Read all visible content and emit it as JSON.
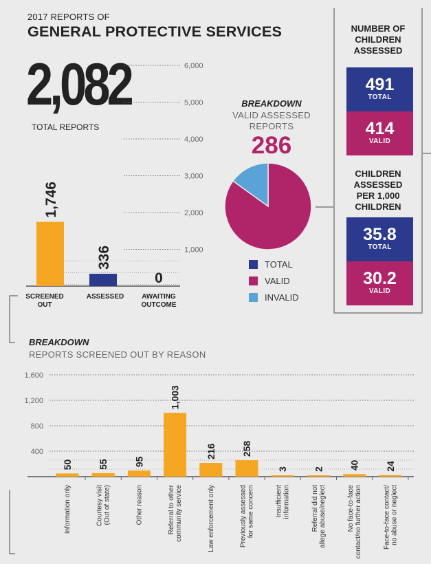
{
  "header": {
    "pre_title": "2017 REPORTS OF",
    "title": "GENERAL PROTECTIVE SERVICES",
    "total_value": "2,082",
    "total_label": "TOTAL REPORTS"
  },
  "pie_block": {
    "breakdown": "BREAKDOWN",
    "subtitle_line1": "VALID ASSESSED",
    "subtitle_line2": "REPORTS",
    "value": "286",
    "legend": [
      {
        "label": "TOTAL",
        "color": "#2b3a8c"
      },
      {
        "label": "VALID",
        "color": "#b0246a"
      },
      {
        "label": "INVALID",
        "color": "#5aa3d6"
      }
    ]
  },
  "right_panel": {
    "head1": [
      "NUMBER OF",
      "CHILDREN",
      "ASSESSED"
    ],
    "boxes1": [
      {
        "value": "491",
        "label": "TOTAL",
        "color": "#2b3a8c"
      },
      {
        "value": "414",
        "label": "VALID",
        "color": "#b0246a"
      }
    ],
    "head2": [
      "CHILDREN",
      "ASSESSED",
      "PER 1,000",
      "CHILDREN"
    ],
    "boxes2": [
      {
        "value": "35.8",
        "label": "TOTAL",
        "color": "#2b3a8c"
      },
      {
        "value": "30.2",
        "label": "VALID",
        "color": "#b0246a"
      }
    ]
  },
  "bottom_block": {
    "breakdown": "BREAKDOWN",
    "subtitle": "REPORTS SCREENED OUT BY REASON"
  },
  "chart_data": [
    {
      "type": "bar",
      "categories": [
        "SCREENED OUT",
        "ASSESSED",
        "AWAITING OUTCOME"
      ],
      "values": [
        1746,
        336,
        0
      ],
      "value_labels": [
        "1,746",
        "336",
        "0"
      ],
      "colors": [
        "#f5a623",
        "#2b3a8c",
        "#f5a623"
      ],
      "ylim": [
        0,
        6000
      ],
      "yticks": [
        1000,
        2000,
        3000,
        4000,
        5000,
        6000
      ],
      "ytick_labels": [
        "1,000",
        "2,000",
        "3,000",
        "4,000",
        "5,000",
        "6,000"
      ],
      "grid": true
    },
    {
      "type": "pie",
      "labels": [
        "VALID",
        "INVALID"
      ],
      "values": [
        243,
        43
      ],
      "colors": [
        "#b0246a",
        "#5aa3d6"
      ]
    },
    {
      "type": "bar",
      "categories": [
        "Information only",
        "Courtesy visit (Out of state)",
        "Other reason",
        "Referral to other community service",
        "Law enforcement only",
        "Previously assessed for same concern",
        "Insufficient information",
        "Referral did not allege abuse/neglect",
        "No face-to-face contact/no further action",
        "Face-to-face contact/ no abuse or neglect"
      ],
      "values": [
        50,
        55,
        95,
        1003,
        216,
        258,
        3,
        2,
        40,
        24
      ],
      "value_labels": [
        "50",
        "55",
        "95",
        "1,003",
        "216",
        "258",
        "3",
        "2",
        "40",
        "24"
      ],
      "ylim": [
        0,
        1600
      ],
      "yticks": [
        400,
        800,
        1200,
        1600
      ],
      "ytick_labels": [
        "400",
        "800",
        "1,200",
        "1,600"
      ],
      "color": "#f5a623",
      "grid": true
    }
  ]
}
